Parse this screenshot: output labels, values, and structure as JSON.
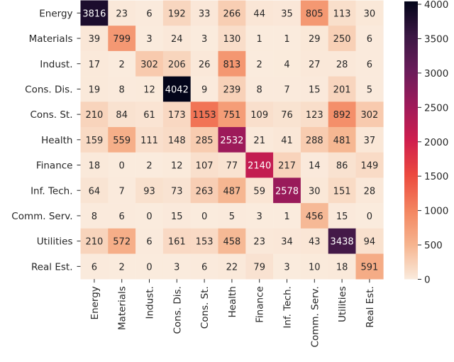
{
  "chart_data": {
    "type": "heatmap",
    "title": "",
    "xlabel": "",
    "ylabel": "",
    "row_labels": [
      "Energy",
      "Materials",
      "Indust.",
      "Cons. Dis.",
      "Cons. St.",
      "Health",
      "Finance",
      "Inf. Tech.",
      "Comm. Serv.",
      "Utilities",
      "Real Est."
    ],
    "col_labels": [
      "Energy",
      "Materials",
      "Indust.",
      "Cons. Dis.",
      "Cons. St.",
      "Health",
      "Finance",
      "Inf. Tech.",
      "Comm. Serv.",
      "Utilities",
      "Real Est."
    ],
    "values": [
      [
        3816,
        23,
        6,
        192,
        33,
        266,
        44,
        35,
        805,
        113,
        30
      ],
      [
        39,
        799,
        3,
        24,
        3,
        130,
        1,
        1,
        29,
        250,
        6
      ],
      [
        17,
        2,
        302,
        206,
        26,
        813,
        2,
        4,
        27,
        28,
        6
      ],
      [
        19,
        8,
        12,
        4042,
        9,
        239,
        8,
        7,
        15,
        201,
        5
      ],
      [
        210,
        84,
        61,
        173,
        1153,
        751,
        109,
        76,
        123,
        892,
        302
      ],
      [
        159,
        559,
        111,
        148,
        285,
        2532,
        21,
        41,
        288,
        481,
        37
      ],
      [
        18,
        0,
        2,
        12,
        107,
        77,
        2140,
        217,
        14,
        86,
        149
      ],
      [
        64,
        7,
        93,
        73,
        263,
        487,
        59,
        2578,
        30,
        151,
        28
      ],
      [
        8,
        6,
        0,
        15,
        0,
        5,
        3,
        1,
        456,
        15,
        0
      ],
      [
        210,
        572,
        6,
        161,
        153,
        458,
        23,
        34,
        43,
        3438,
        94
      ],
      [
        6,
        2,
        0,
        3,
        6,
        22,
        79,
        3,
        10,
        18,
        591
      ]
    ],
    "colorbar": {
      "ticks": [
        0,
        500,
        1000,
        1500,
        2000,
        2500,
        3000,
        3500,
        4000
      ],
      "tick_labels": [
        "0",
        "500",
        "1000",
        "1500",
        "2000",
        "2500",
        "3000",
        "3500",
        "4000"
      ],
      "range": [
        0,
        4042
      ],
      "colormap": "rocket_r",
      "colors": [
        "#faebdd",
        "#f6b48e",
        "#f3845f",
        "#ec4a3f",
        "#cf1e4e",
        "#9e1a5a",
        "#6a1d5a",
        "#3b1844",
        "#03051a"
      ]
    },
    "annotated": true,
    "grid": false
  }
}
